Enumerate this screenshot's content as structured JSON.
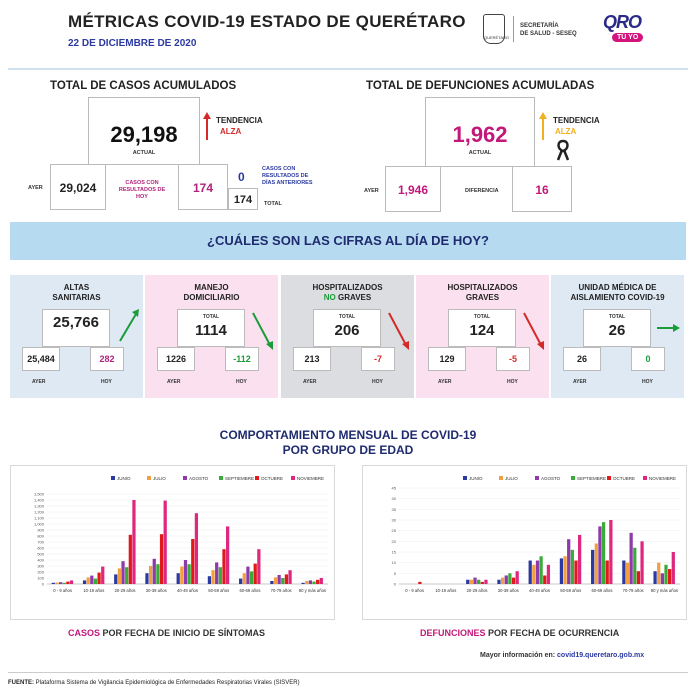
{
  "header": {
    "title": "MÉTRICAS COVID-19 ESTADO DE QUERÉTARO",
    "date": "22 DE DICIEMBRE DE 2020",
    "seal_text": "QUERÉTARO",
    "agency": "SECRETARÍA\nDE SALUD - SESEQ",
    "brand": "QRO",
    "brand_badge": "TÚ YO"
  },
  "cases": {
    "title": "TOTAL DE CASOS ACUMULADOS",
    "actual": "29,198",
    "actual_label": "ACTUAL",
    "trend_label": "TENDENCIA",
    "trend_value": "ALZA",
    "ayer_label": "AYER",
    "ayer": "29,024",
    "con_res_label": "CASOS CON\nRESULTADOS DE\nHOY",
    "con_res": "174",
    "prev_label": "CASOS CON\nRESULTADOS DE\nDÍAS ANTERIORES",
    "prev": "0",
    "total": "174",
    "total_label": "TOTAL"
  },
  "deaths": {
    "title": "TOTAL DE DEFUNCIONES ACUMULADAS",
    "actual": "1,962",
    "actual_label": "ACTUAL",
    "trend_label": "TENDENCIA",
    "trend_value": "ALZA",
    "ayer_label": "AYER",
    "ayer": "1,946",
    "diff_label": "DIFERENCIA",
    "diff": "16"
  },
  "banner": "¿CUÁLES SON LAS CIFRAS AL DÍA DE HOY?",
  "panels": [
    {
      "title1": "ALTAS",
      "title2": "SANITARIAS",
      "total_label": "",
      "total": "25,766",
      "ayer": "25,484",
      "hoy": "282",
      "ayer_label": "AYER",
      "hoy_label": "HOY",
      "bg": "#dfe9f3",
      "hoy_color": "#b0237a",
      "trend": "up",
      "trend_color": "#1b9c3a"
    },
    {
      "title1": "MANEJO",
      "title2": "DOMICILIARIO",
      "total_label": "TOTAL",
      "total": "1114",
      "ayer": "1226",
      "hoy": "-112",
      "ayer_label": "AYER",
      "hoy_label": "HOY",
      "bg": "#fbe1ef",
      "hoy_color": "#1b9c3a",
      "trend": "down",
      "trend_color": "#1b9c3a"
    },
    {
      "title1": "HOSPITALIZADOS",
      "title2a": "NO",
      "title2b": " GRAVES",
      "total_label": "TOTAL",
      "total": "206",
      "ayer": "213",
      "hoy": "-7",
      "ayer_label": "AYER",
      "hoy_label": "HOY",
      "bg": "#dcdde0",
      "hoy_color": "#d42a2a",
      "trend": "down",
      "trend_color": "#d42a2a"
    },
    {
      "title1": "HOSPITALIZADOS",
      "title2": "GRAVES",
      "total_label": "TOTAL",
      "total": "124",
      "ayer": "129",
      "hoy": "-5",
      "ayer_label": "AYER",
      "hoy_label": "HOY",
      "bg": "#fbe1ef",
      "hoy_color": "#d42a2a",
      "trend": "down",
      "trend_color": "#d42a2a"
    },
    {
      "title1": "UNIDAD MÉDICA DE",
      "title2": "AISLAMIENTO COVID-19",
      "total_label": "TOTAL",
      "total": "26",
      "ayer": "26",
      "hoy": "0",
      "ayer_label": "AYER",
      "hoy_label": "HOY",
      "bg": "#dfe9f3",
      "hoy_color": "#1b9c3a",
      "trend": "flat",
      "trend_color": "#1b9c3a"
    }
  ],
  "charts_title1": "COMPORTAMIENTO MENSUAL DE COVID-19",
  "charts_title2": "POR GRUPO DE EDAD",
  "caption_cases_a": "CASOS",
  "caption_cases_b": " POR FECHA DE INICIO DE SÍNTOMAS",
  "caption_deaths_a": "DEFUNCIONES",
  "caption_deaths_b": " POR FECHA DE OCURRENCIA",
  "more_info": "Mayor información en:",
  "more_url": "covid19.queretaro.gob.mx",
  "footer_label": "FUENTE:",
  "footer_text": " Plataforma Sistema  de Vigilancia Epidemiológica de Enfermedades Respiratorias Virales (SISVER)",
  "chart_data": [
    {
      "type": "bar",
      "categories": [
        "0 - 9 años",
        "10-19 años",
        "20-29 años",
        "30-39 años",
        "40-49 años",
        "50-59 años",
        "60-69 años",
        "70-79 años",
        "80 y más años"
      ],
      "ylim": [
        0,
        1600
      ],
      "yticks": [
        0,
        100,
        200,
        300,
        400,
        500,
        600,
        700,
        800,
        900,
        1000,
        1100,
        1200,
        1300,
        1400,
        1500
      ],
      "series": [
        {
          "name": "JUNIO",
          "color": "#2b3aa0",
          "values": [
            20,
            60,
            160,
            180,
            180,
            130,
            90,
            50,
            20
          ]
        },
        {
          "name": "JULIO",
          "color": "#f0a040",
          "values": [
            25,
            110,
            260,
            300,
            290,
            230,
            180,
            110,
            50
          ]
        },
        {
          "name": "AGOSTO",
          "color": "#8e3aa8",
          "values": [
            30,
            140,
            380,
            420,
            400,
            360,
            290,
            150,
            60
          ]
        },
        {
          "name": "SEPTIEMBRE",
          "color": "#3aaa3a",
          "values": [
            20,
            90,
            280,
            330,
            330,
            280,
            210,
            100,
            40
          ]
        },
        {
          "name": "OCTUBRE",
          "color": "#e01a1a",
          "values": [
            40,
            190,
            820,
            830,
            750,
            580,
            340,
            160,
            70
          ]
        },
        {
          "name": "NOVIEMBRE",
          "color": "#e0277e",
          "values": [
            60,
            290,
            1400,
            1390,
            1180,
            960,
            580,
            230,
            100
          ]
        }
      ]
    },
    {
      "type": "bar",
      "categories": [
        "0 - 9 años",
        "10-19 años",
        "20-29 años",
        "30-39 años",
        "40-49 años",
        "50-59 años",
        "60-69 años",
        "70-79 años",
        "80 y más años"
      ],
      "ylim": [
        0,
        45
      ],
      "yticks": [
        0,
        5,
        10,
        15,
        20,
        25,
        30,
        35,
        40,
        45
      ],
      "series": [
        {
          "name": "JUNIO",
          "color": "#2b3aa0",
          "values": [
            0,
            0,
            2,
            2,
            11,
            12,
            16,
            11,
            6
          ]
        },
        {
          "name": "JULIO",
          "color": "#f0a040",
          "values": [
            0,
            0,
            2,
            3,
            9,
            13,
            19,
            10,
            10
          ]
        },
        {
          "name": "AGOSTO",
          "color": "#8e3aa8",
          "values": [
            0,
            0,
            3,
            4,
            11,
            21,
            27,
            24,
            5
          ]
        },
        {
          "name": "SEPTIEMBRE",
          "color": "#3aaa3a",
          "values": [
            0,
            0,
            2,
            5,
            13,
            16,
            29,
            17,
            9
          ]
        },
        {
          "name": "OCTUBRE",
          "color": "#e01a1a",
          "values": [
            1,
            0,
            1,
            3,
            4,
            11,
            11,
            6,
            7
          ]
        },
        {
          "name": "NOVIEMBRE",
          "color": "#e0277e",
          "values": [
            0,
            0,
            2,
            6,
            9,
            23,
            30,
            20,
            15
          ]
        }
      ]
    }
  ]
}
